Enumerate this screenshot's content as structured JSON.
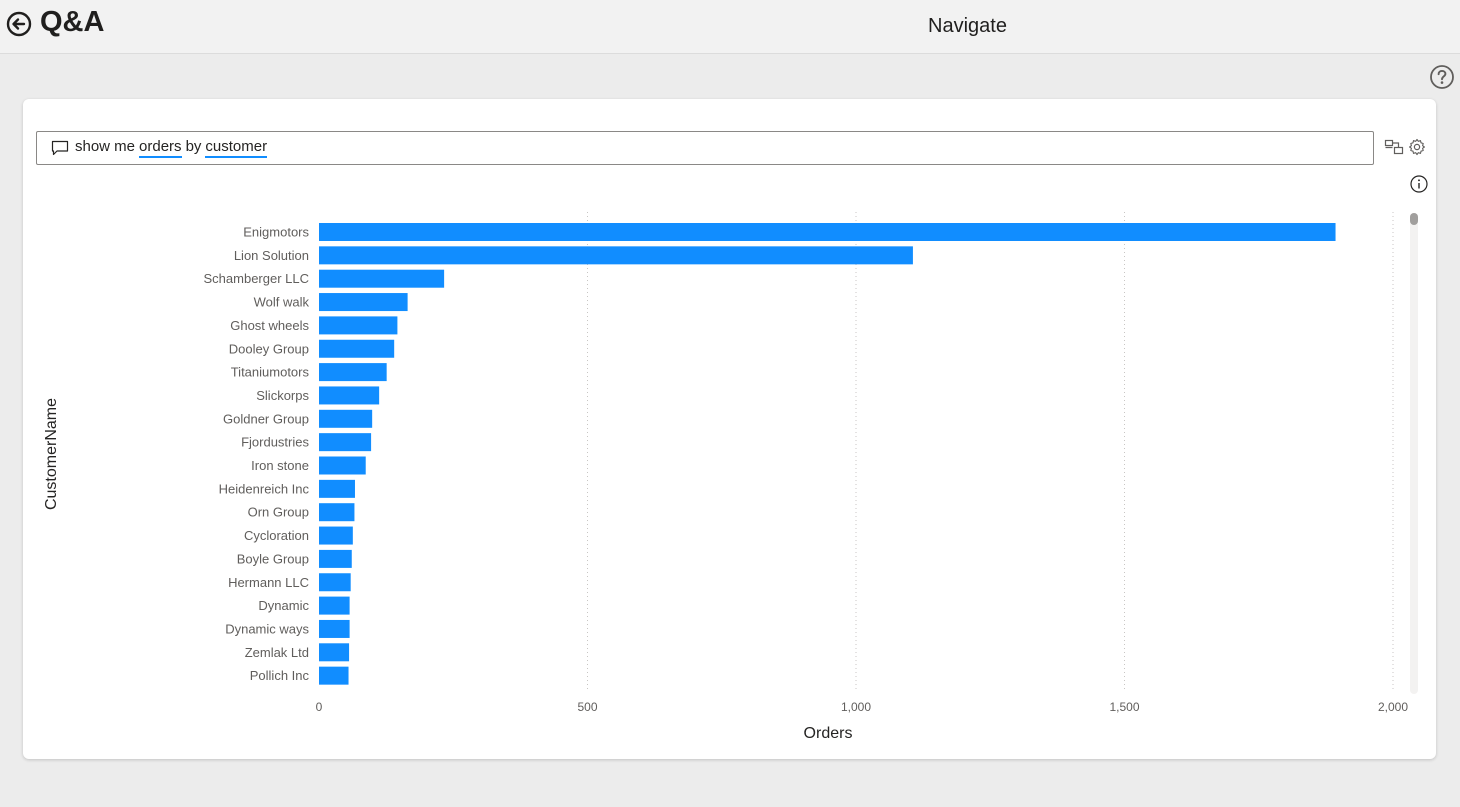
{
  "header": {
    "title": "Q&A",
    "nav_label": "Navigate",
    "back_icon": "back-arrow-icon",
    "help_icon": "help-icon"
  },
  "query": {
    "icon": "chat-bubble-icon",
    "words": [
      {
        "text": "show me",
        "term": false
      },
      {
        "text": "orders",
        "term": true
      },
      {
        "text": "by",
        "term": false
      },
      {
        "text": "customer",
        "term": true
      }
    ],
    "toolbar_icons": [
      "convert-visual-icon",
      "settings-gear-icon",
      "info-icon"
    ]
  },
  "colors": {
    "bar": "#118dff",
    "term_underline": "#118dff"
  },
  "chart_data": {
    "type": "bar",
    "orientation": "horizontal",
    "xlabel": "Orders",
    "ylabel": "CustomerName",
    "xlim": [
      0,
      2000
    ],
    "xticks": [
      0,
      500,
      1000,
      1500,
      2000
    ],
    "xtick_labels": [
      "0",
      "500",
      "1,000",
      "1,500",
      "2,000"
    ],
    "grid": "vertical dotted",
    "categories": [
      "Enigmotors",
      "Lion Solution",
      "Schamberger LLC",
      "Wolf walk",
      "Ghost wheels",
      "Dooley Group",
      "Titaniumotors",
      "Slickorps",
      "Goldner Group",
      "Fjordustries",
      "Iron stone",
      "Heidenreich Inc",
      "Orn Group",
      "Cycloration",
      "Boyle Group",
      "Hermann LLC",
      "Dynamic",
      "Dynamic ways",
      "Zemlak Ltd",
      "Pollich Inc"
    ],
    "values": [
      1893,
      1106,
      233,
      165,
      146,
      140,
      126,
      112,
      99,
      97,
      87,
      67,
      66,
      63,
      61,
      59,
      57,
      57,
      56,
      55
    ]
  }
}
